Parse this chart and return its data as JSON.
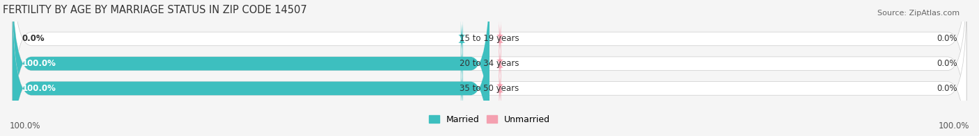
{
  "title": "FERTILITY BY AGE BY MARRIAGE STATUS IN ZIP CODE 14507",
  "source": "Source: ZipAtlas.com",
  "categories": [
    "15 to 19 years",
    "20 to 34 years",
    "35 to 50 years"
  ],
  "married": [
    0.0,
    100.0,
    100.0
  ],
  "unmarried": [
    0.0,
    0.0,
    0.0
  ],
  "married_color": "#3dbfbf",
  "unmarried_color": "#f4a0b0",
  "bar_bg_color": "#e8e8e8",
  "bar_height": 0.55,
  "xlim": [
    -100,
    100
  ],
  "title_fontsize": 10.5,
  "label_fontsize": 8.5,
  "source_fontsize": 8,
  "legend_fontsize": 9,
  "axis_label_left": "100.0%",
  "axis_label_right": "100.0%",
  "background_color": "#f5f5f5",
  "fig_width": 14.06,
  "fig_height": 1.96
}
